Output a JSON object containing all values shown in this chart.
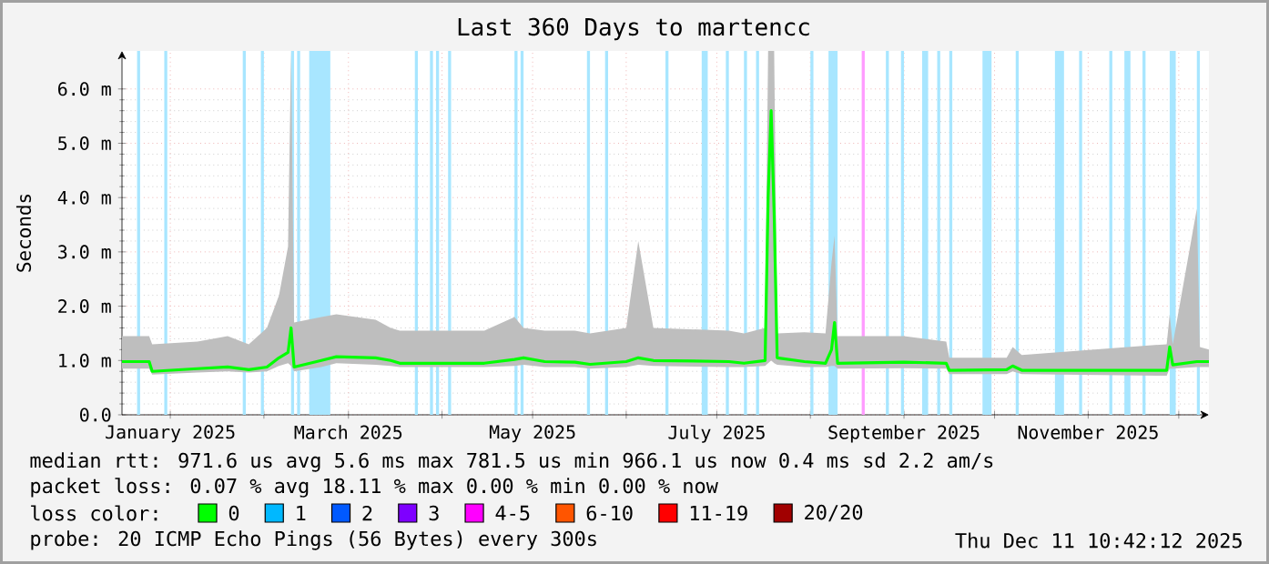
{
  "chart_data": {
    "type": "line",
    "title": "Last 360 Days to martencc",
    "ylabel": "Seconds",
    "legend_title": "loss color:",
    "x": [
      "2024-12-16",
      "2024-12-25",
      "2024-12-26",
      "2025-01-10",
      "2025-01-20",
      "2025-01-27",
      "2025-02-02",
      "2025-02-06",
      "2025-02-09",
      "2025-02-10",
      "2025-02-11",
      "2025-02-20",
      "2025-02-25",
      "2025-03-10",
      "2025-03-15",
      "2025-03-18",
      "2025-04-15",
      "2025-04-25",
      "2025-04-28",
      "2025-05-05",
      "2025-05-15",
      "2025-05-20",
      "2025-06-01",
      "2025-06-05",
      "2025-06-10",
      "2025-07-05",
      "2025-07-10",
      "2025-07-17",
      "2025-07-18",
      "2025-07-19",
      "2025-07-20",
      "2025-07-21",
      "2025-07-30",
      "2025-08-06",
      "2025-08-08",
      "2025-08-09",
      "2025-08-10",
      "2025-09-01",
      "2025-09-15",
      "2025-09-16",
      "2025-10-05",
      "2025-10-07",
      "2025-10-10",
      "2025-11-27",
      "2025-11-28",
      "2025-11-29",
      "2025-12-07",
      "2025-12-08",
      "2025-12-11"
    ],
    "series": [
      {
        "name": "0",
        "color": "#00ff00",
        "values": [
          0.98,
          0.98,
          0.8,
          0.85,
          0.88,
          0.83,
          0.88,
          1.05,
          1.15,
          1.6,
          0.88,
          1.0,
          1.07,
          1.05,
          1.0,
          0.95,
          0.95,
          1.02,
          1.05,
          0.98,
          0.97,
          0.93,
          0.98,
          1.05,
          1.0,
          0.98,
          0.95,
          1.0,
          4.0,
          5.6,
          3.7,
          1.05,
          0.98,
          0.95,
          1.2,
          1.7,
          0.95,
          0.97,
          0.95,
          0.82,
          0.83,
          0.9,
          0.82,
          0.82,
          1.25,
          0.92,
          0.98,
          0.98,
          0.98
        ],
        "lower": [
          0.85,
          0.85,
          0.74,
          0.78,
          0.8,
          0.78,
          0.8,
          0.9,
          0.95,
          0.9,
          0.8,
          0.88,
          0.95,
          0.92,
          0.9,
          0.88,
          0.88,
          0.9,
          0.92,
          0.88,
          0.88,
          0.85,
          0.88,
          0.92,
          0.9,
          0.88,
          0.88,
          0.9,
          0.95,
          1.0,
          0.95,
          0.92,
          0.88,
          0.88,
          0.9,
          0.9,
          0.85,
          0.86,
          0.85,
          0.75,
          0.75,
          0.8,
          0.75,
          0.72,
          0.85,
          0.85,
          0.88,
          0.88,
          0.88
        ],
        "upper": [
          1.45,
          1.45,
          1.3,
          1.35,
          1.45,
          1.3,
          1.6,
          2.2,
          3.1,
          6.7,
          1.7,
          1.8,
          1.85,
          1.75,
          1.6,
          1.55,
          1.55,
          1.8,
          1.6,
          1.55,
          1.55,
          1.5,
          1.6,
          3.2,
          1.6,
          1.55,
          1.5,
          1.6,
          6.7,
          6.7,
          6.7,
          1.5,
          1.52,
          1.5,
          2.8,
          3.3,
          1.45,
          1.45,
          1.35,
          1.05,
          1.05,
          1.25,
          1.1,
          1.3,
          1.85,
          1.3,
          3.8,
          1.25,
          1.2
        ]
      },
      {
        "name": "1",
        "color": "#00b8ff",
        "values": [
          null,
          null,
          null,
          null,
          null,
          null,
          null,
          null,
          null,
          null,
          null,
          null,
          null,
          null,
          null,
          null,
          null,
          null,
          null,
          null,
          null,
          null,
          null,
          null,
          null,
          null,
          null,
          null,
          null,
          null,
          null,
          null,
          null,
          null,
          null,
          null,
          null,
          null,
          null,
          null,
          null,
          null,
          null,
          null,
          null,
          null,
          null,
          null,
          null
        ]
      },
      {
        "name": "2",
        "color": "#0059ff",
        "values": [
          null,
          null,
          null,
          null,
          null,
          null,
          null,
          null,
          null,
          null,
          null,
          null,
          null,
          null,
          null,
          null,
          null,
          null,
          null,
          null,
          null,
          null,
          null,
          null,
          null,
          null,
          null,
          null,
          null,
          null,
          null,
          null,
          null,
          null,
          null,
          null,
          null,
          null,
          null,
          null,
          null,
          null,
          null,
          null,
          null,
          null,
          null,
          null,
          null
        ]
      },
      {
        "name": "3",
        "color": "#7e00ff",
        "values": [
          null,
          null,
          null,
          null,
          null,
          null,
          null,
          null,
          null,
          null,
          null,
          null,
          null,
          null,
          null,
          null,
          null,
          null,
          null,
          null,
          null,
          null,
          null,
          null,
          null,
          null,
          null,
          null,
          null,
          null,
          null,
          null,
          null,
          null,
          null,
          null,
          null,
          null,
          null,
          null,
          null,
          null,
          null,
          null,
          null,
          null,
          null,
          null,
          null
        ]
      },
      {
        "name": "4-5",
        "color": "#ff00ff",
        "values": [
          null,
          null,
          null,
          null,
          null,
          null,
          null,
          null,
          null,
          null,
          null,
          null,
          null,
          null,
          null,
          null,
          null,
          null,
          null,
          null,
          null,
          null,
          null,
          null,
          null,
          null,
          null,
          null,
          null,
          null,
          null,
          null,
          null,
          null,
          null,
          null,
          null,
          null,
          null,
          null,
          null,
          null,
          null,
          null,
          null,
          null,
          null,
          null,
          null
        ]
      },
      {
        "name": "6-10",
        "color": "#ff5500",
        "values": [
          null,
          null,
          null,
          null,
          null,
          null,
          null,
          null,
          null,
          null,
          null,
          null,
          null,
          null,
          null,
          null,
          null,
          null,
          null,
          null,
          null,
          null,
          null,
          null,
          null,
          null,
          null,
          null,
          null,
          null,
          null,
          null,
          null,
          null,
          null,
          null,
          null,
          null,
          null,
          null,
          null,
          null,
          null,
          null,
          null,
          null,
          null,
          null,
          null
        ]
      },
      {
        "name": "11-19",
        "color": "#ff0000",
        "values": [
          null,
          null,
          null,
          null,
          null,
          null,
          null,
          null,
          null,
          null,
          null,
          null,
          null,
          null,
          null,
          null,
          null,
          null,
          null,
          null,
          null,
          null,
          null,
          null,
          null,
          null,
          null,
          null,
          null,
          null,
          null,
          null,
          null,
          null,
          null,
          null,
          null,
          null,
          null,
          null,
          null,
          null,
          null,
          null,
          null,
          null,
          null,
          null,
          null
        ]
      },
      {
        "name": "20/20",
        "color": "#a10000",
        "values": [
          null,
          null,
          null,
          null,
          null,
          null,
          null,
          null,
          null,
          null,
          null,
          null,
          null,
          null,
          null,
          null,
          null,
          null,
          null,
          null,
          null,
          null,
          null,
          null,
          null,
          null,
          null,
          null,
          null,
          null,
          null,
          null,
          null,
          null,
          null,
          null,
          null,
          null,
          null,
          null,
          null,
          null,
          null,
          null,
          null,
          null,
          null,
          null,
          null
        ]
      }
    ],
    "bands": [
      {
        "axis": "x",
        "from": "2024-12-21",
        "to": "2024-12-22",
        "color": "#a8e6ff"
      },
      {
        "axis": "x",
        "from": "2024-12-30",
        "to": "2024-12-31",
        "color": "#a8e6ff"
      },
      {
        "axis": "x",
        "from": "2025-01-25",
        "to": "2025-01-26",
        "color": "#a8e6ff"
      },
      {
        "axis": "x",
        "from": "2025-01-31",
        "to": "2025-02-01",
        "color": "#a8e6ff"
      },
      {
        "axis": "x",
        "from": "2025-02-10",
        "to": "2025-02-11",
        "color": "#a8e6ff"
      },
      {
        "axis": "x",
        "from": "2025-02-12",
        "to": "2025-02-13",
        "color": "#a8e6ff"
      },
      {
        "axis": "x",
        "from": "2025-02-16",
        "to": "2025-02-23",
        "color": "#a8e6ff"
      },
      {
        "axis": "x",
        "from": "2025-03-23",
        "to": "2025-03-24",
        "color": "#a8e6ff"
      },
      {
        "axis": "x",
        "from": "2025-03-28",
        "to": "2025-03-29",
        "color": "#a8e6ff"
      },
      {
        "axis": "x",
        "from": "2025-03-30",
        "to": "2025-03-31",
        "color": "#a8e6ff"
      },
      {
        "axis": "x",
        "from": "2025-04-03",
        "to": "2025-04-04",
        "color": "#a8e6ff"
      },
      {
        "axis": "x",
        "from": "2025-04-25",
        "to": "2025-04-26",
        "color": "#a8e6ff"
      },
      {
        "axis": "x",
        "from": "2025-04-27",
        "to": "2025-04-28",
        "color": "#a8e6ff"
      },
      {
        "axis": "x",
        "from": "2025-05-19",
        "to": "2025-05-20",
        "color": "#a8e6ff"
      },
      {
        "axis": "x",
        "from": "2025-05-25",
        "to": "2025-05-26",
        "color": "#a8e6ff"
      },
      {
        "axis": "x",
        "from": "2025-06-14",
        "to": "2025-06-15",
        "color": "#a8e6ff"
      },
      {
        "axis": "x",
        "from": "2025-06-26",
        "to": "2025-06-28",
        "color": "#a8e6ff"
      },
      {
        "axis": "x",
        "from": "2025-07-04",
        "to": "2025-07-05",
        "color": "#a8e6ff"
      },
      {
        "axis": "x",
        "from": "2025-07-10",
        "to": "2025-07-11",
        "color": "#a8e6ff"
      },
      {
        "axis": "x",
        "from": "2025-07-14",
        "to": "2025-07-15",
        "color": "#a8e6ff"
      },
      {
        "axis": "x",
        "from": "2025-08-01",
        "to": "2025-08-02",
        "color": "#a8e6ff"
      },
      {
        "axis": "x",
        "from": "2025-08-07",
        "to": "2025-08-10",
        "color": "#a8e6ff"
      },
      {
        "axis": "x",
        "from": "2025-08-18",
        "to": "2025-08-19",
        "color": "#ff9cff"
      },
      {
        "axis": "x",
        "from": "2025-08-26",
        "to": "2025-08-27",
        "color": "#a8e6ff"
      },
      {
        "axis": "x",
        "from": "2025-08-31",
        "to": "2025-09-01",
        "color": "#a8e6ff"
      },
      {
        "axis": "x",
        "from": "2025-09-07",
        "to": "2025-09-09",
        "color": "#a8e6ff"
      },
      {
        "axis": "x",
        "from": "2025-09-12",
        "to": "2025-09-13",
        "color": "#a8e6ff"
      },
      {
        "axis": "x",
        "from": "2025-09-16",
        "to": "2025-09-17",
        "color": "#a8e6ff"
      },
      {
        "axis": "x",
        "from": "2025-09-27",
        "to": "2025-09-30",
        "color": "#a8e6ff"
      },
      {
        "axis": "x",
        "from": "2025-10-08",
        "to": "2025-10-09",
        "color": "#a8e6ff"
      },
      {
        "axis": "x",
        "from": "2025-10-21",
        "to": "2025-10-24",
        "color": "#a8e6ff"
      },
      {
        "axis": "x",
        "from": "2025-10-29",
        "to": "2025-10-30",
        "color": "#a8e6ff"
      },
      {
        "axis": "x",
        "from": "2025-11-08",
        "to": "2025-11-09",
        "color": "#a8e6ff"
      },
      {
        "axis": "x",
        "from": "2025-11-13",
        "to": "2025-11-15",
        "color": "#a8e6ff"
      },
      {
        "axis": "x",
        "from": "2025-11-19",
        "to": "2025-11-20",
        "color": "#a8e6ff"
      },
      {
        "axis": "x",
        "from": "2025-11-28",
        "to": "2025-11-30",
        "color": "#a8e6ff"
      },
      {
        "axis": "x",
        "from": "2025-12-07",
        "to": "2025-12-08",
        "color": "#a8e6ff"
      }
    ],
    "xlim": [
      "2024-12-16",
      "2025-12-11"
    ],
    "xticks": [
      {
        "value": "2025-01-01",
        "label": "January 2025"
      },
      {
        "value": "2025-02-01",
        "label": null
      },
      {
        "value": "2025-03-01",
        "label": "March 2025"
      },
      {
        "value": "2025-04-01",
        "label": null
      },
      {
        "value": "2025-05-01",
        "label": "May 2025"
      },
      {
        "value": "2025-06-01",
        "label": null
      },
      {
        "value": "2025-07-01",
        "label": "July 2025"
      },
      {
        "value": "2025-08-01",
        "label": null
      },
      {
        "value": "2025-09-01",
        "label": "September 2025"
      },
      {
        "value": "2025-10-01",
        "label": null
      },
      {
        "value": "2025-11-01",
        "label": "November 2025"
      },
      {
        "value": "2025-12-01",
        "label": null
      }
    ],
    "ylim": [
      0,
      6.7
    ],
    "yticks": [
      {
        "value": 0,
        "label": "0.0"
      },
      {
        "value": 1,
        "label": "1.0 m"
      },
      {
        "value": 2,
        "label": "2.0 m"
      },
      {
        "value": 3,
        "label": "3.0 m"
      },
      {
        "value": 4,
        "label": "4.0 m"
      },
      {
        "value": 5,
        "label": "5.0 m"
      },
      {
        "value": 6,
        "label": "6.0 m"
      }
    ],
    "grid": true,
    "legend": "bottom",
    "marker": "none",
    "line_style": "solid",
    "annotations": [
      "median rtt: 971.6 us avg 5.6 ms max 781.5 us min 966.1 us now 0.4 ms sd 2.2 am/s",
      "packet loss: 0.07 % avg 18.11 % max 0.00 % min 0.00 % now",
      "probe: 20 ICMP Echo Pings (56 Bytes) every 300s",
      "Thu Dec 11 10:42:12 2025"
    ]
  }
}
